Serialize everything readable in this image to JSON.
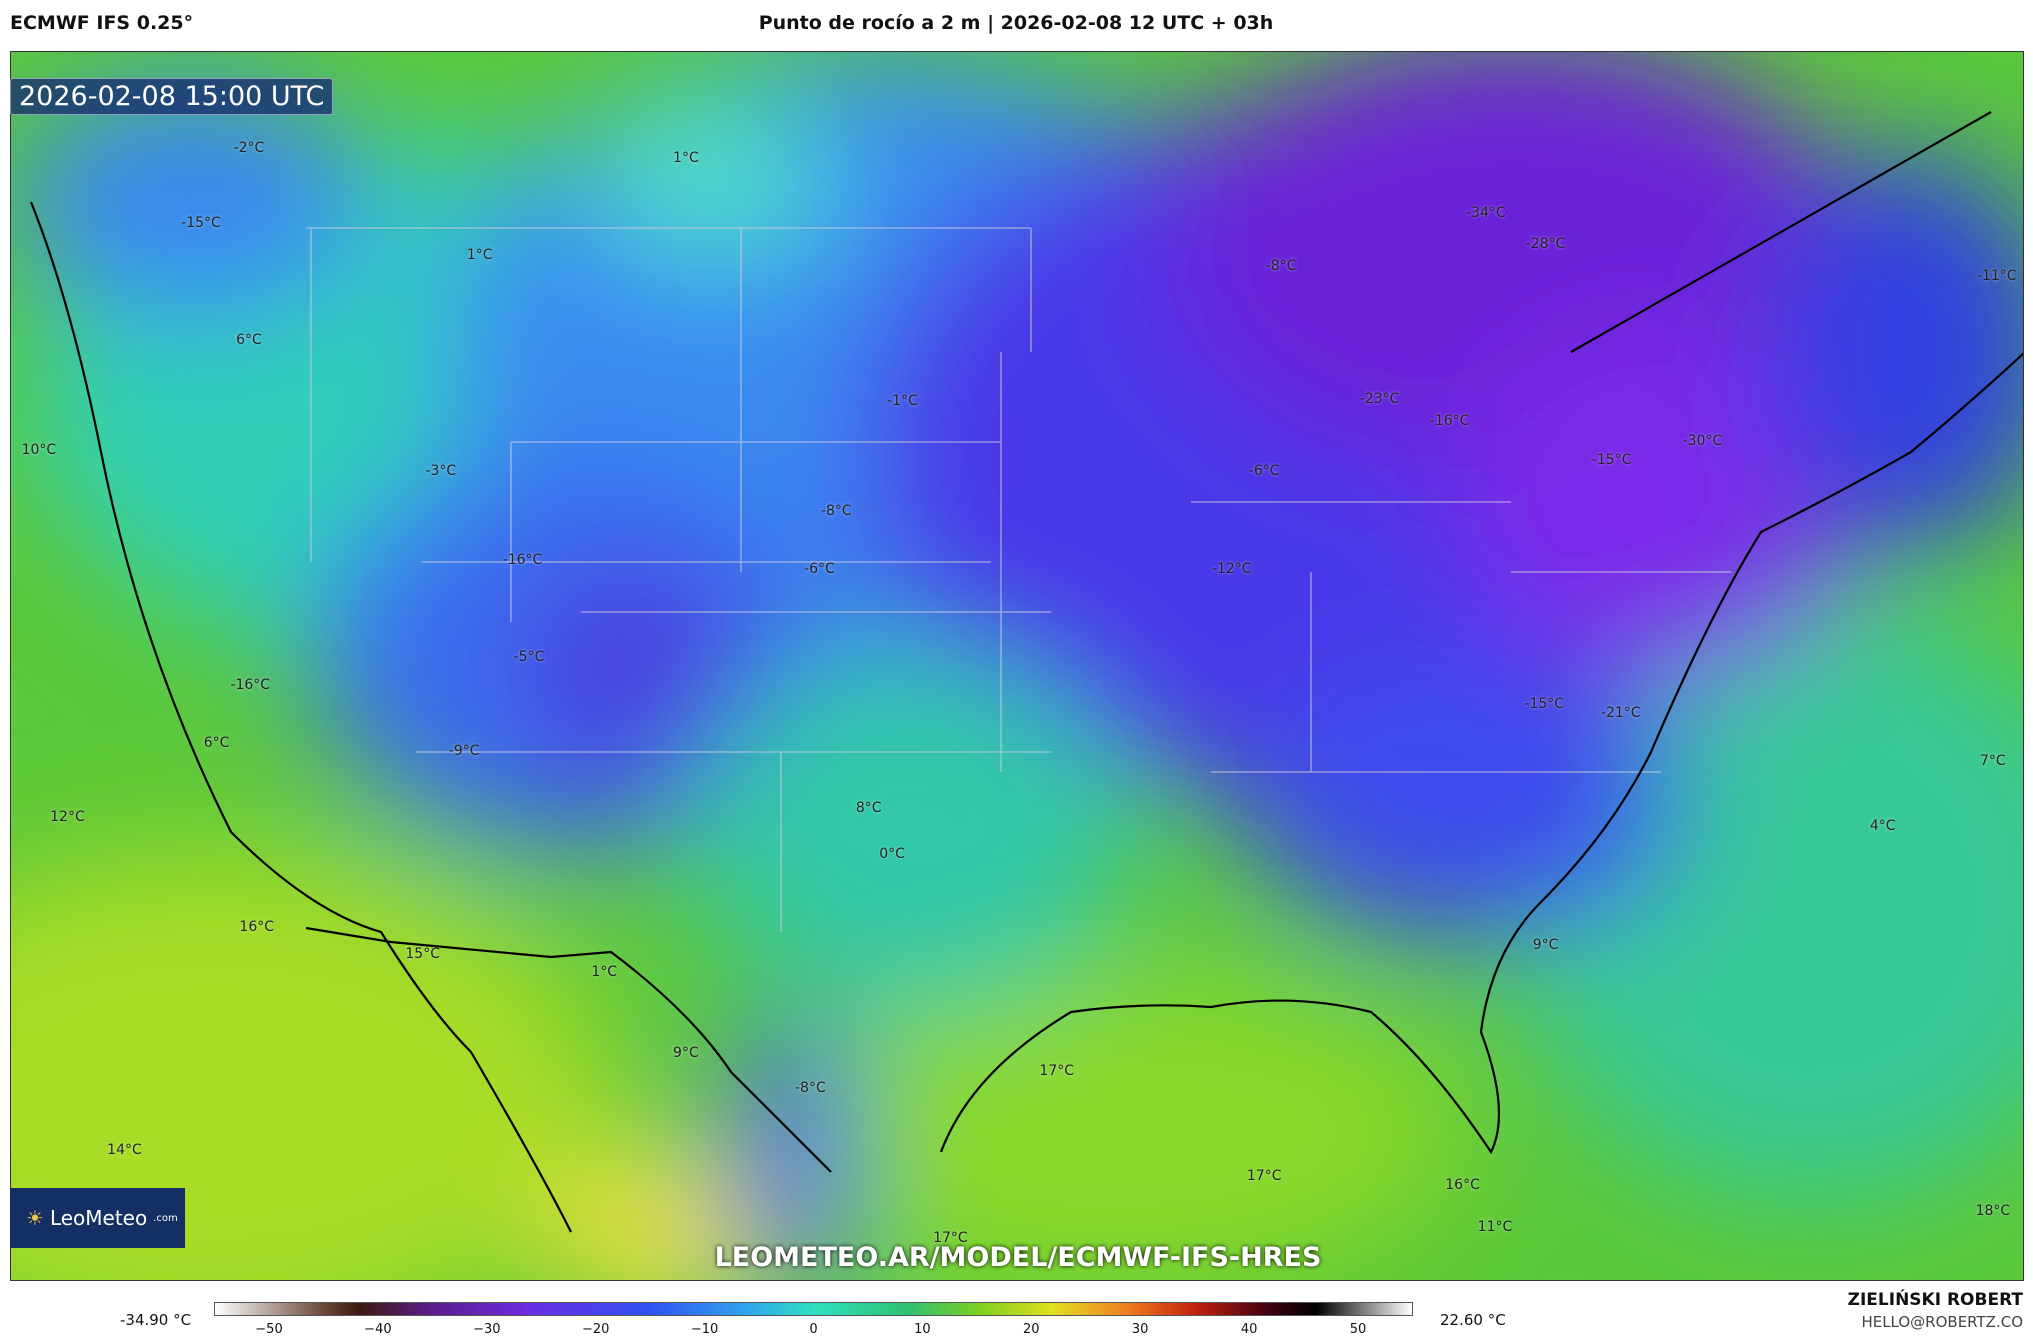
{
  "header": {
    "model": "ECMWF IFS 0.25°",
    "title": "Punto de rocío a 2 m | 2026-02-08 12 UTC + 03h"
  },
  "map": {
    "timestamp": "2026-02-08 15:00 UTC",
    "labels": [
      "-2°C",
      "1°C",
      "-15°C",
      "1°C",
      "6°C",
      "-34°C",
      "-28°C",
      "-8°C",
      "-11°C",
      "-1°C",
      "-23°C",
      "-16°C",
      "-3°C",
      "-6°C",
      "-15°C",
      "-30°C",
      "10°C",
      "-8°C",
      "-16°C",
      "-6°C",
      "-12°C",
      "-5°C",
      "-16°C",
      "-15°C",
      "-21°C",
      "6°C",
      "-9°C",
      "7°C",
      "12°C",
      "8°C",
      "0°C",
      "4°C",
      "16°C",
      "9°C",
      "15°C",
      "1°C",
      "9°C",
      "-8°C",
      "17°C",
      "14°C",
      "17°C",
      "16°C",
      "18°C",
      "11°C",
      "17°C"
    ],
    "logo": {
      "name": "LeoMeteo",
      "suffix": ".com"
    },
    "url": "LEOMETEO.AR/MODEL/ECMWF-IFS-HRES"
  },
  "colorbar": {
    "min_label": "-34.90 °C",
    "max_label": "22.60 °C",
    "ticks": [
      "−50",
      "−40",
      "−30",
      "−20",
      "−10",
      "0",
      "10",
      "20",
      "30",
      "40",
      "50"
    ]
  },
  "credit": {
    "author": "ZIELIŃSKI ROBERT",
    "email": "HELLO@ROBERTZ.CO"
  }
}
